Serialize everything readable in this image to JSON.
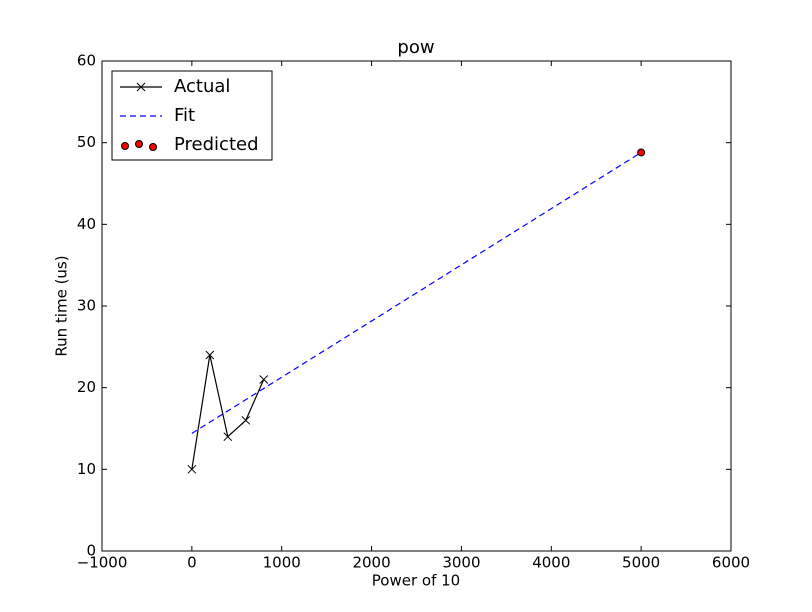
{
  "chart_data": {
    "type": "line",
    "title": "pow",
    "xlabel": "Power of 10",
    "ylabel": "Run time (us)",
    "xlim": [
      -1000,
      6000
    ],
    "ylim": [
      0,
      60
    ],
    "xticks": [
      {
        "value": -1000,
        "label": "−1000"
      },
      0,
      1000,
      2000,
      3000,
      4000,
      5000,
      6000
    ],
    "yticks": [
      0,
      10,
      20,
      30,
      40,
      50,
      60
    ],
    "legend": "upper left",
    "series": [
      {
        "name": "Actual",
        "color": "#000000",
        "linestyle": "solid",
        "marker": "x",
        "x": [
          0,
          200,
          400,
          600,
          800
        ],
        "values": [
          10,
          24,
          14,
          16,
          21
        ]
      },
      {
        "name": "Fit",
        "color": "#0000ff",
        "linestyle": "dashed",
        "marker": "none",
        "x": [
          0,
          5000
        ],
        "values": [
          14.4,
          48.8
        ]
      },
      {
        "name": "Predicted",
        "color": "#ff0000",
        "linestyle": "none",
        "marker": "o",
        "x": [
          5000
        ],
        "values": [
          48.8
        ]
      }
    ]
  }
}
